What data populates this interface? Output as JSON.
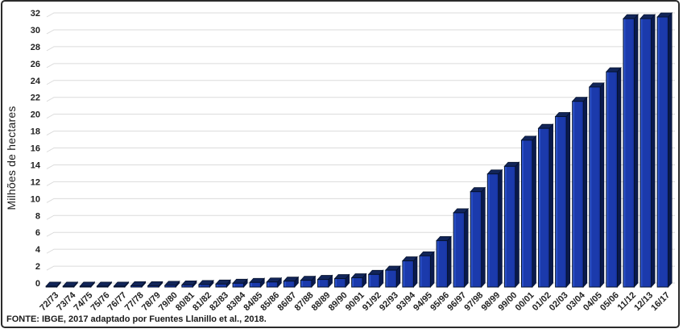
{
  "chart_data": {
    "type": "bar",
    "title": "",
    "ylabel": "Milhões de hectares",
    "xlabel": "",
    "ylim": [
      0,
      32
    ],
    "ytick_step": 2,
    "grid": true,
    "legend": false,
    "style_3d": true,
    "colors": {
      "bar_front": "#1B3AAC",
      "bar_front_light": "#2E55CE",
      "bar_front_dark": "#16309A",
      "bar_side": "#0A1A4D",
      "bar_top": "#122559",
      "bar_outline": "#05122E",
      "gridline": "#DBDBDB",
      "frame_border": "#2B2B2B",
      "text": "#1A1A1A",
      "background": "#FFFFFF"
    },
    "categories": [
      "72/73",
      "73/74",
      "74/75",
      "75/76",
      "76/77",
      "77/78",
      "78/79",
      "79/80",
      "80/81",
      "81/82",
      "82/83",
      "83/84",
      "84/85",
      "85/86",
      "86/87",
      "87/88",
      "88/89",
      "89/90",
      "90/91",
      "91/92",
      "92/93",
      "93/94",
      "94/95",
      "95/96",
      "96/97",
      "97/98",
      "98/99",
      "99/00",
      "00/01",
      "01/02",
      "02/03",
      "03/04",
      "04/05",
      "05/06",
      "11/12",
      "12/13",
      "16/17"
    ],
    "values": [
      0.1,
      0.1,
      0.1,
      0.1,
      0.1,
      0.15,
      0.15,
      0.2,
      0.25,
      0.3,
      0.35,
      0.45,
      0.55,
      0.6,
      0.7,
      0.8,
      0.9,
      1.0,
      1.1,
      1.5,
      2.0,
      3.1,
      3.7,
      5.5,
      8.8,
      11.3,
      13.4,
      14.3,
      17.4,
      18.8,
      20.2,
      22.0,
      23.7,
      25.5,
      31.8,
      31.8,
      32.0
    ]
  },
  "footer": {
    "source": "FONTE: IBGE, 2017 adaptado por Fuentes Llanillo et al., 2018."
  }
}
